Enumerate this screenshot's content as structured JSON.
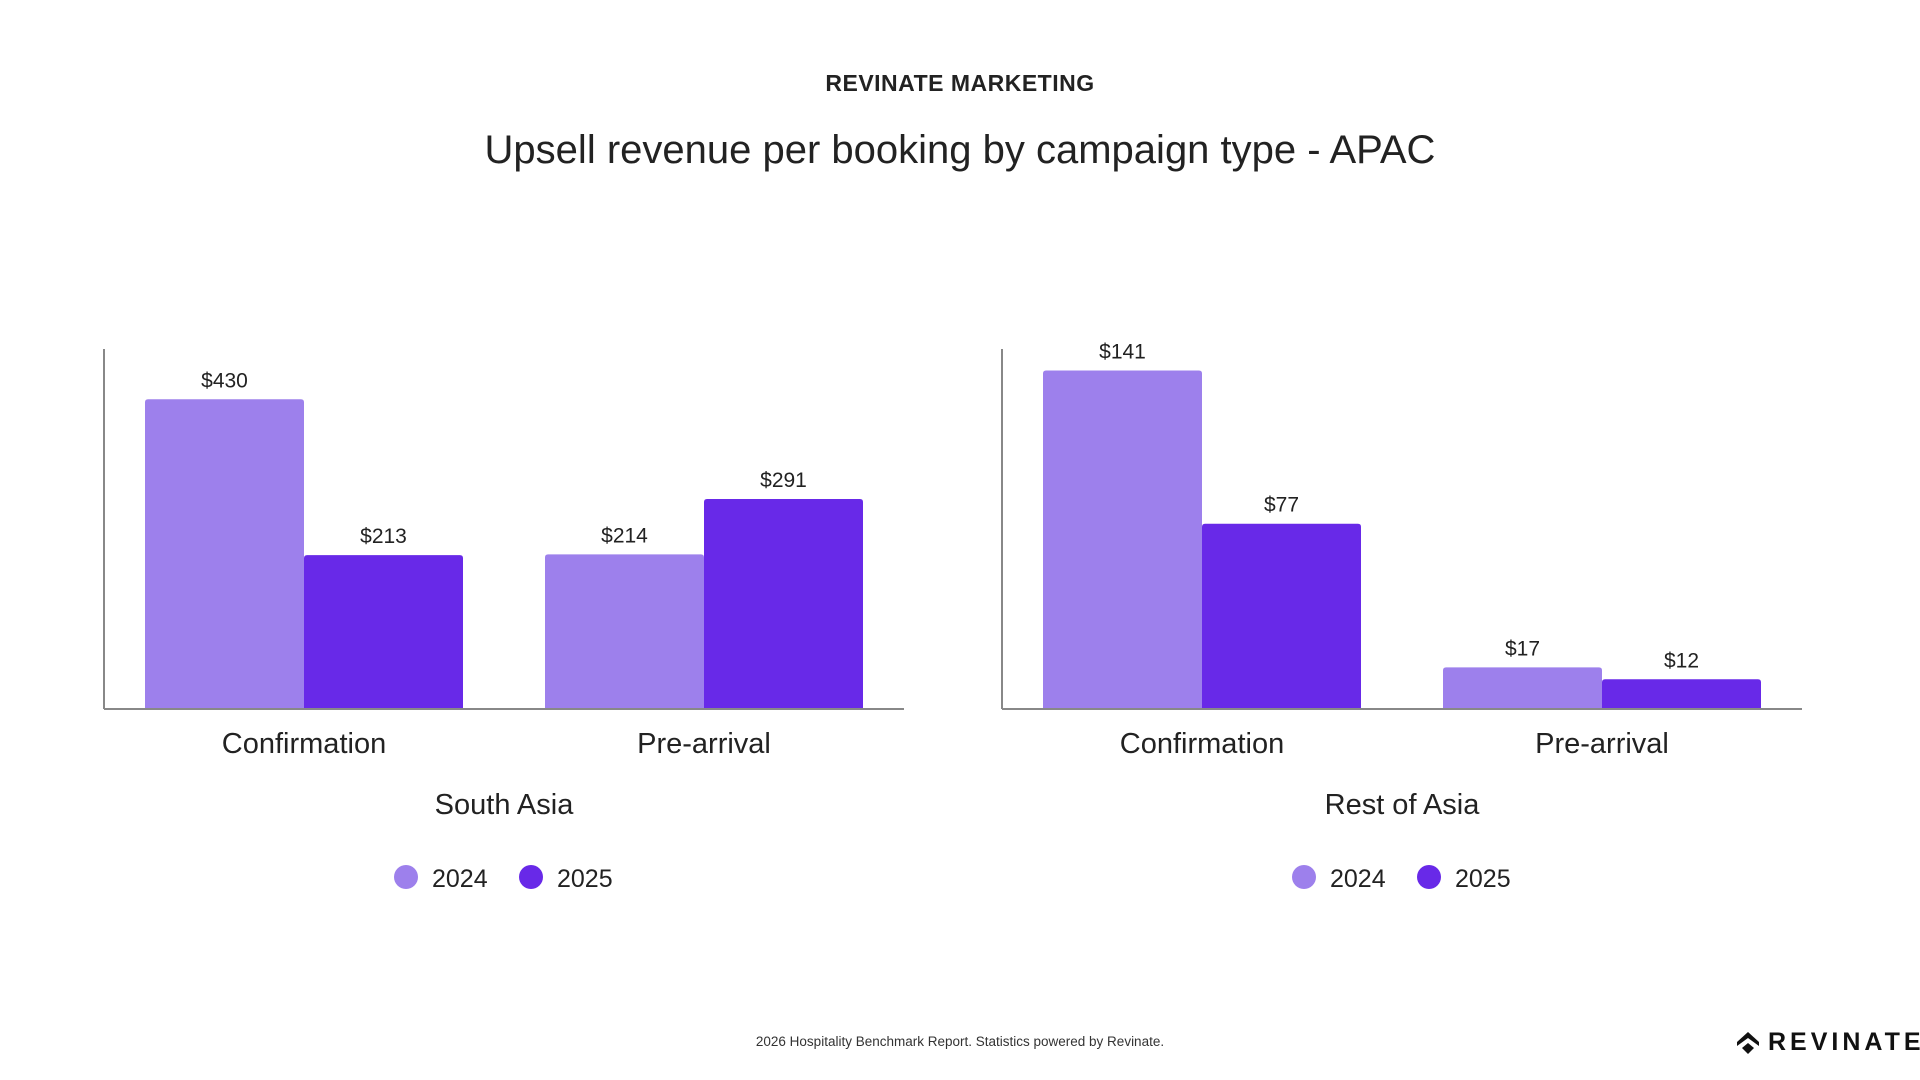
{
  "header": {
    "kicker": "REVINATE MARKETING",
    "title": "Upsell revenue per booking by campaign type - APAC"
  },
  "footer": {
    "text": "2026 Hospitality Benchmark Report. Statistics powered by Revinate.",
    "logo": "REVINATE"
  },
  "colors": {
    "2024": "#9d80ec",
    "2025": "#6829e8"
  },
  "chart_data": [
    {
      "type": "bar",
      "title": "South Asia",
      "categories": [
        "Confirmation",
        "Pre-arrival"
      ],
      "series": [
        {
          "name": "2024",
          "values": [
            430,
            214
          ],
          "labels": [
            "$430",
            "$214"
          ]
        },
        {
          "name": "2025",
          "values": [
            213,
            291
          ],
          "labels": [
            "$213",
            "$291"
          ]
        }
      ],
      "ylim": [
        0,
        500
      ],
      "grid": false,
      "legend": "bottom"
    },
    {
      "type": "bar",
      "title": "Rest of Asia",
      "categories": [
        "Confirmation",
        "Pre-arrival"
      ],
      "series": [
        {
          "name": "2024",
          "values": [
            141,
            17
          ],
          "labels": [
            "$141",
            "$17"
          ]
        },
        {
          "name": "2025",
          "values": [
            77,
            12
          ],
          "labels": [
            "$77",
            "$12"
          ]
        }
      ],
      "ylim": [
        0,
        150
      ],
      "grid": false,
      "legend": "bottom"
    }
  ]
}
